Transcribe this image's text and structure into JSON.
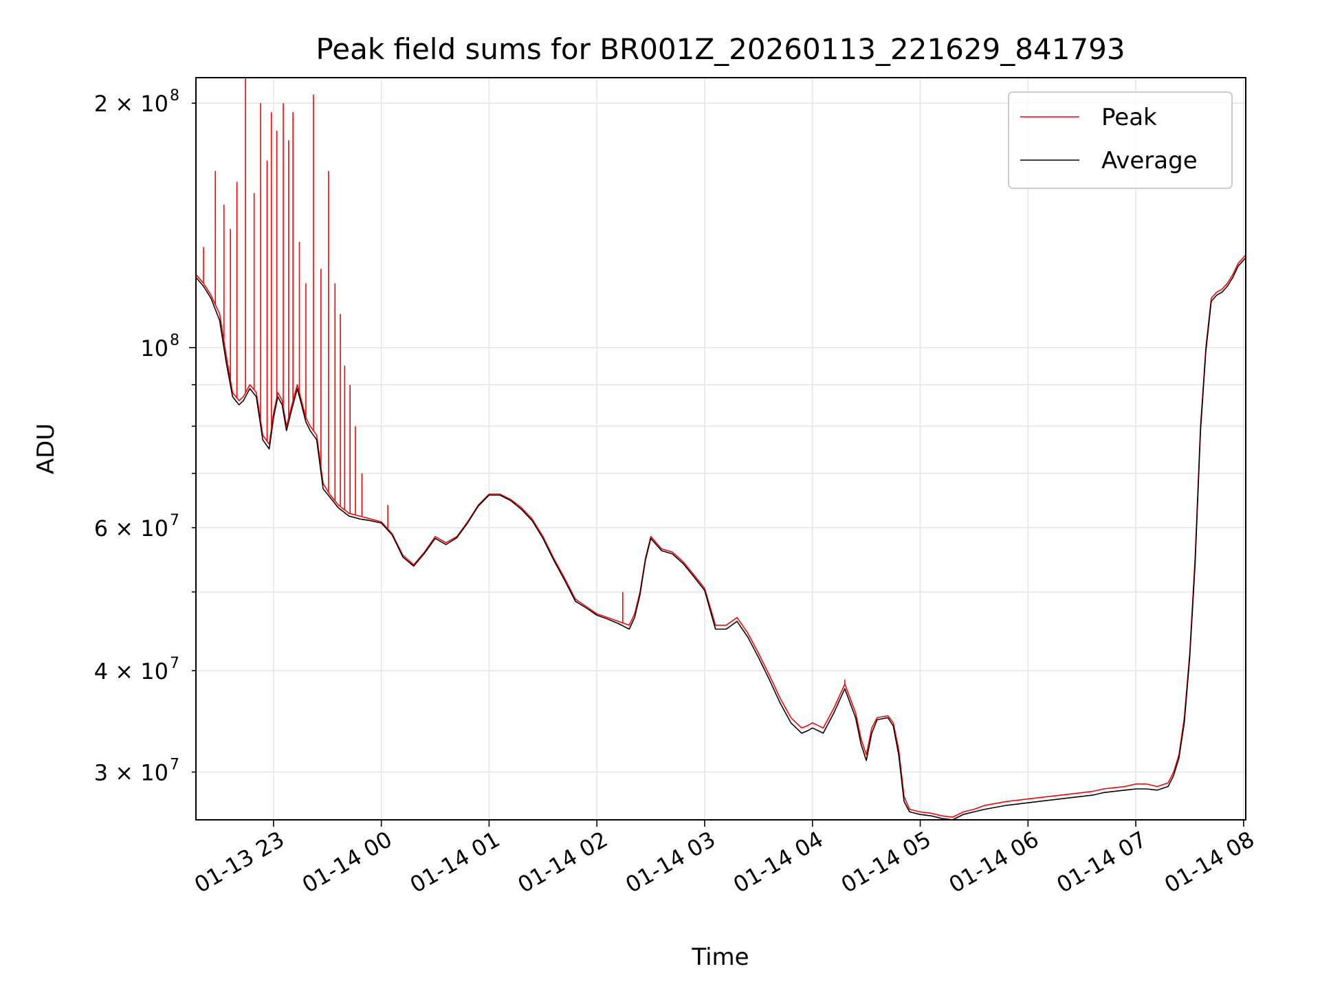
{
  "chart_data": {
    "type": "line",
    "title": "Peak field sums for BR001Z_20260113_221629_841793",
    "xlabel": "Time",
    "ylabel": "ADU",
    "yscale": "log",
    "grid": true,
    "legend_position": "top-right",
    "x_unit": "hours since 2026-01-13 00:00",
    "xlim": [
      22.28,
      32.02
    ],
    "ylim": [
      26200000,
      215000000
    ],
    "x_ticks": [
      {
        "value": 23,
        "label": "01-13 23"
      },
      {
        "value": 24,
        "label": "01-14 00"
      },
      {
        "value": 25,
        "label": "01-14 01"
      },
      {
        "value": 26,
        "label": "01-14 02"
      },
      {
        "value": 27,
        "label": "01-14 03"
      },
      {
        "value": 28,
        "label": "01-14 04"
      },
      {
        "value": 29,
        "label": "01-14 05"
      },
      {
        "value": 30,
        "label": "01-14 06"
      },
      {
        "value": 31,
        "label": "01-14 07"
      },
      {
        "value": 32,
        "label": "01-14 08"
      }
    ],
    "y_major_ticks": [
      {
        "value": 100000000,
        "base": "10",
        "exp": "8",
        "label": "10^8"
      }
    ],
    "y_minor_ticks": [
      {
        "value": 30000000,
        "mant": "3",
        "exp": "7",
        "label": "3×10^7"
      },
      {
        "value": 40000000,
        "mant": "4",
        "exp": "7",
        "label": "4×10^7"
      },
      {
        "value": 50000000,
        "mant": "",
        "exp": "",
        "label": ""
      },
      {
        "value": 60000000,
        "mant": "6",
        "exp": "7",
        "label": "6×10^7"
      },
      {
        "value": 70000000,
        "mant": "",
        "exp": "",
        "label": ""
      },
      {
        "value": 80000000,
        "mant": "",
        "exp": "",
        "label": ""
      },
      {
        "value": 90000000,
        "mant": "",
        "exp": "",
        "label": ""
      },
      {
        "value": 200000000,
        "mant": "2",
        "exp": "8",
        "label": "2×10^8"
      }
    ],
    "series": [
      {
        "name": "Peak",
        "color": "#ff0000",
        "x": [
          22.28,
          22.35,
          22.42,
          22.5,
          22.56,
          22.62,
          22.68,
          22.72,
          22.78,
          22.84,
          22.9,
          22.96,
          23.0,
          23.04,
          23.08,
          23.12,
          23.16,
          23.22,
          23.26,
          23.3,
          23.34,
          23.4,
          23.46,
          23.52,
          23.6,
          23.7,
          23.8,
          23.9,
          24.0,
          24.1,
          24.2,
          24.3,
          24.4,
          24.5,
          24.6,
          24.7,
          24.8,
          24.9,
          25.0,
          25.1,
          25.2,
          25.3,
          25.4,
          25.5,
          25.6,
          25.7,
          25.8,
          25.9,
          26.0,
          26.1,
          26.2,
          26.3,
          26.35,
          26.4,
          26.45,
          26.5,
          26.55,
          26.6,
          26.7,
          26.8,
          26.9,
          27.0,
          27.1,
          27.2,
          27.3,
          27.4,
          27.5,
          27.6,
          27.7,
          27.8,
          27.9,
          27.95,
          28.0,
          28.1,
          28.2,
          28.3,
          28.4,
          28.45,
          28.5,
          28.55,
          28.6,
          28.7,
          28.75,
          28.8,
          28.85,
          28.9,
          29.0,
          29.1,
          29.2,
          29.3,
          29.4,
          29.5,
          29.6,
          29.8,
          30.0,
          30.2,
          30.4,
          30.6,
          30.7,
          30.8,
          30.9,
          31.0,
          31.1,
          31.2,
          31.3,
          31.35,
          31.4,
          31.45,
          31.5,
          31.55,
          31.6,
          31.65,
          31.7,
          31.75,
          31.8,
          31.85,
          31.9,
          31.95,
          32.02
        ],
        "values": [
          123000000,
          120000000,
          116000000,
          110000000,
          98000000,
          88000000,
          86000000,
          87000000,
          90000000,
          88000000,
          78000000,
          76000000,
          83000000,
          88000000,
          86000000,
          80000000,
          84000000,
          90000000,
          86000000,
          82000000,
          80000000,
          78000000,
          68000000,
          66000000,
          64000000,
          62500000,
          62000000,
          61500000,
          61000000,
          59000000,
          55500000,
          54000000,
          56000000,
          58500000,
          57500000,
          58500000,
          61000000,
          64000000,
          66000000,
          66000000,
          65000000,
          63500000,
          61500000,
          58500000,
          55000000,
          52000000,
          49000000,
          48000000,
          47000000,
          46500000,
          46000000,
          45500000,
          47000000,
          50000000,
          55000000,
          58500000,
          57500000,
          56500000,
          56000000,
          54500000,
          52500000,
          50500000,
          45500000,
          45500000,
          46500000,
          44500000,
          42000000,
          39500000,
          37000000,
          35000000,
          34000000,
          34200000,
          34500000,
          34000000,
          36000000,
          38500000,
          35500000,
          33000000,
          31500000,
          34000000,
          35000000,
          35200000,
          34500000,
          32000000,
          28000000,
          27000000,
          26800000,
          26700000,
          26500000,
          26400000,
          26800000,
          27000000,
          27300000,
          27600000,
          27800000,
          28000000,
          28200000,
          28400000,
          28600000,
          28700000,
          28800000,
          29000000,
          29000000,
          28800000,
          29100000,
          30000000,
          31500000,
          35000000,
          42000000,
          55000000,
          80000000,
          100000000,
          115000000,
          117000000,
          118000000,
          120000000,
          123000000,
          127000000,
          130000000
        ]
      },
      {
        "name": "Average",
        "color": "#000000",
        "x": [
          22.28,
          22.35,
          22.42,
          22.5,
          22.56,
          22.62,
          22.68,
          22.72,
          22.78,
          22.84,
          22.9,
          22.96,
          23.0,
          23.04,
          23.08,
          23.12,
          23.16,
          23.22,
          23.26,
          23.3,
          23.34,
          23.4,
          23.46,
          23.52,
          23.6,
          23.7,
          23.8,
          23.9,
          24.0,
          24.1,
          24.2,
          24.3,
          24.4,
          24.5,
          24.6,
          24.7,
          24.8,
          24.9,
          25.0,
          25.1,
          25.2,
          25.3,
          25.4,
          25.5,
          25.6,
          25.7,
          25.8,
          25.9,
          26.0,
          26.1,
          26.2,
          26.3,
          26.35,
          26.4,
          26.45,
          26.5,
          26.55,
          26.6,
          26.7,
          26.8,
          26.9,
          27.0,
          27.1,
          27.2,
          27.3,
          27.4,
          27.5,
          27.6,
          27.7,
          27.8,
          27.9,
          27.95,
          28.0,
          28.1,
          28.2,
          28.3,
          28.4,
          28.45,
          28.5,
          28.55,
          28.6,
          28.7,
          28.75,
          28.8,
          28.85,
          28.9,
          29.0,
          29.1,
          29.2,
          29.3,
          29.4,
          29.5,
          29.6,
          29.8,
          30.0,
          30.2,
          30.4,
          30.6,
          30.7,
          30.8,
          30.9,
          31.0,
          31.1,
          31.2,
          31.3,
          31.35,
          31.4,
          31.45,
          31.5,
          31.55,
          31.6,
          31.65,
          31.7,
          31.75,
          31.8,
          31.85,
          31.9,
          31.95,
          32.02
        ],
        "values": [
          122000000,
          119000000,
          115000000,
          108000000,
          96000000,
          87000000,
          85000000,
          86000000,
          89000000,
          87000000,
          77000000,
          75000000,
          82000000,
          87000000,
          85000000,
          79000000,
          83000000,
          89000000,
          85000000,
          81000000,
          79000000,
          77000000,
          67000000,
          65500000,
          63500000,
          62000000,
          61500000,
          61200000,
          60800000,
          58800000,
          55200000,
          53800000,
          55800000,
          58200000,
          57200000,
          58300000,
          60800000,
          63800000,
          65800000,
          65800000,
          64800000,
          63200000,
          61200000,
          58200000,
          54700000,
          51700000,
          48700000,
          47800000,
          46800000,
          46300000,
          45700000,
          45000000,
          46500000,
          49600000,
          54700000,
          58200000,
          57200000,
          56200000,
          55700000,
          54200000,
          52200000,
          50200000,
          45000000,
          45000000,
          46000000,
          44000000,
          41500000,
          39000000,
          36500000,
          34500000,
          33500000,
          33700000,
          34000000,
          33500000,
          35500000,
          38000000,
          35000000,
          32500000,
          31000000,
          33500000,
          34800000,
          35000000,
          34200000,
          31500000,
          27600000,
          26800000,
          26600000,
          26500000,
          26300000,
          26200000,
          26600000,
          26800000,
          27000000,
          27300000,
          27500000,
          27700000,
          27900000,
          28100000,
          28300000,
          28400000,
          28500000,
          28600000,
          28600000,
          28500000,
          28800000,
          29700000,
          31200000,
          34500000,
          41500000,
          54000000,
          79000000,
          99000000,
          114000000,
          116000000,
          117000000,
          119000000,
          122000000,
          126000000,
          129000000
        ]
      }
    ],
    "spikes": {
      "series": "Peak",
      "x": [
        22.35,
        22.46,
        22.54,
        22.6,
        22.66,
        22.74,
        22.82,
        22.88,
        22.94,
        22.98,
        23.03,
        23.09,
        23.14,
        23.18,
        23.24,
        23.3,
        23.37,
        23.44,
        23.51,
        23.57,
        23.62,
        23.66,
        23.71,
        23.76,
        23.82,
        24.06,
        26.24,
        28.3
      ],
      "values": [
        133000000,
        165000000,
        150000000,
        140000000,
        160000000,
        215000000,
        155000000,
        200000000,
        170000000,
        195000000,
        185000000,
        200000000,
        180000000,
        195000000,
        135000000,
        120000000,
        205000000,
        125000000,
        165000000,
        120000000,
        110000000,
        95000000,
        90000000,
        80000000,
        70000000,
        64000000,
        50000000,
        39000000
      ]
    }
  }
}
